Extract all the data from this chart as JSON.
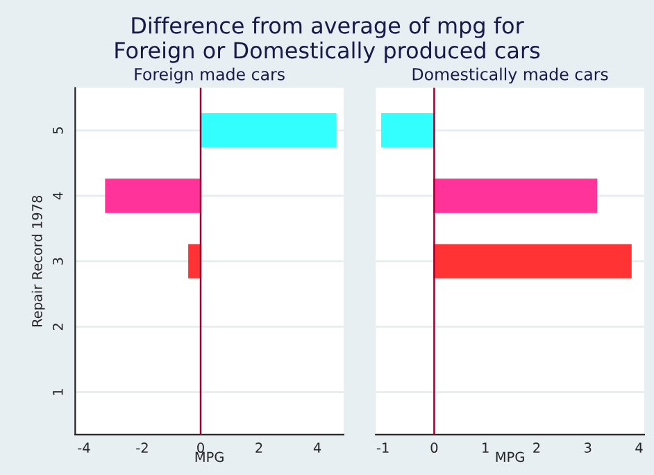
{
  "chart_data": [
    {
      "type": "bar",
      "orientation": "horizontal",
      "title": "Difference from average of mpg for\nForeign or Domestically produced cars",
      "subtitle": "Foreign made cars",
      "xlabel": "MPG",
      "ylabel": "Repair Record 1978",
      "categories": [
        "5",
        "4",
        "3",
        "2",
        "1"
      ],
      "values": [
        4.63,
        -3.25,
        -0.4,
        null,
        null
      ],
      "colors": [
        "#33ffff",
        "#ff3399",
        "#ff3333",
        "#ff3333",
        "#ff3333"
      ],
      "xlim": [
        -4.3,
        4.9
      ],
      "xticks": [
        -4,
        -2,
        0,
        2,
        4
      ],
      "grid": "y",
      "ref_lines": [
        {
          "axis": "x",
          "value": 0,
          "color": "#990033"
        }
      ]
    },
    {
      "type": "bar",
      "orientation": "horizontal",
      "subtitle": "Domestically made cars",
      "xlabel": "MPG",
      "categories": [
        "5",
        "4",
        "3",
        "2",
        "1"
      ],
      "values": [
        -1.02,
        3.17,
        3.84,
        null,
        null
      ],
      "colors": [
        "#33ffff",
        "#ff3399",
        "#ff3333",
        "#ff3333",
        "#ff3333"
      ],
      "xlim": [
        -1.14,
        4.1
      ],
      "xticks": [
        -1,
        0,
        1,
        2,
        3,
        4
      ],
      "grid": "y",
      "tick_labels": "x",
      "ref_lines": [
        {
          "axis": "x",
          "value": 0,
          "color": "#990033"
        }
      ]
    }
  ]
}
